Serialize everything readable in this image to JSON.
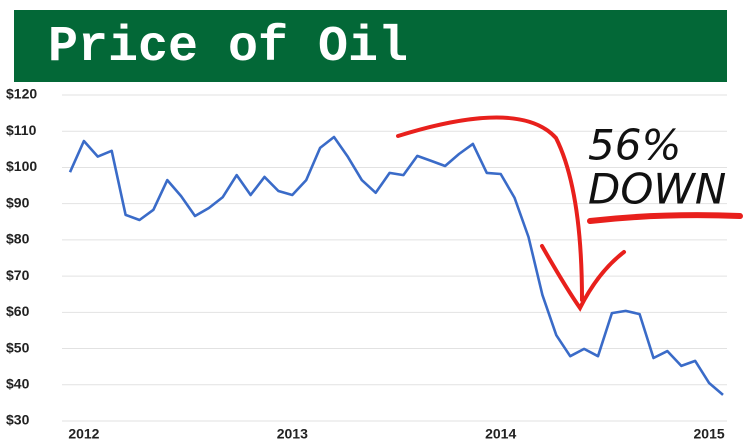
{
  "chart_data": {
    "type": "line",
    "title": "Price of Oil",
    "categories": [
      null,
      "2012",
      null,
      null,
      null,
      null,
      null,
      null,
      null,
      null,
      null,
      null,
      null,
      null,
      null,
      null,
      "2013",
      null,
      null,
      null,
      null,
      null,
      null,
      null,
      null,
      null,
      null,
      null,
      null,
      null,
      null,
      "2014",
      null,
      null,
      null,
      null,
      null,
      null,
      null,
      null,
      null,
      null,
      null,
      null,
      null,
      null,
      "2015",
      null
    ],
    "values": [
      98.7,
      107.3,
      103,
      104.6,
      86.9,
      85.5,
      88.3,
      96.5,
      92.1,
      86.6,
      88.8,
      91.8,
      97.9,
      92.4,
      97.4,
      93.5,
      92.4,
      96.5,
      105.4,
      108.4,
      102.9,
      96.5,
      93,
      98.5,
      97.9,
      103.2,
      101.8,
      100.4,
      103.7,
      106.5,
      98.5,
      98.2,
      91.6,
      80.8,
      64.8,
      53.7,
      47.9,
      49.9,
      47.9,
      59.8,
      60.4,
      59.5,
      47.4,
      49.3,
      45.2,
      46.6,
      40.5,
      37.2
    ],
    "color": "#3a6bc8",
    "ylim": [
      30,
      120
    ],
    "yticks": [
      {
        "value": 30,
        "label": "$30"
      },
      {
        "value": 40,
        "label": "$40"
      },
      {
        "value": 50,
        "label": "$50"
      },
      {
        "value": 60,
        "label": "$60"
      },
      {
        "value": 70,
        "label": "$70"
      },
      {
        "value": 80,
        "label": "$80"
      },
      {
        "value": 90,
        "label": "$90"
      },
      {
        "value": 100,
        "label": "$100"
      },
      {
        "value": 110,
        "label": "$110"
      },
      {
        "value": 120,
        "label": "$120"
      }
    ],
    "grid": true,
    "annotations": [
      "56%",
      "DOWN"
    ]
  }
}
